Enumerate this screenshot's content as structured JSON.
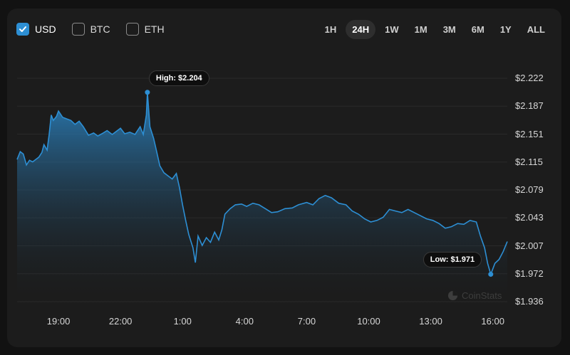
{
  "currencies": [
    {
      "label": "USD",
      "checked": true
    },
    {
      "label": "BTC",
      "checked": false
    },
    {
      "label": "ETH",
      "checked": false
    }
  ],
  "ranges": [
    "1H",
    "24H",
    "1W",
    "1M",
    "3M",
    "6M",
    "1Y",
    "ALL"
  ],
  "active_range": "24H",
  "watermark": "CoinStats",
  "colors": {
    "line": "#2d8fd4",
    "background": "#1c1c1c"
  },
  "chart_data": {
    "type": "area",
    "x_unit": "hours",
    "x_ticks": [
      {
        "label": "19:00",
        "x": 19
      },
      {
        "label": "22:00",
        "x": 22
      },
      {
        "label": "1:00",
        "x": 25
      },
      {
        "label": "4:00",
        "x": 28
      },
      {
        "label": "7:00",
        "x": 31
      },
      {
        "label": "10:00",
        "x": 34
      },
      {
        "label": "13:00",
        "x": 37
      },
      {
        "label": "16:00",
        "x": 40
      }
    ],
    "y_ticks": [
      "$2.222",
      "$2.187",
      "$2.151",
      "$2.115",
      "$2.079",
      "$2.043",
      "$2.007",
      "$1.972",
      "$1.936"
    ],
    "ylim": [
      1.936,
      2.222
    ],
    "xlim": [
      17.0,
      40.7
    ],
    "grid": true,
    "high": {
      "label": "High: $2.204",
      "x": 23.3,
      "y": 2.204
    },
    "low": {
      "label": "Low: $1.971",
      "x": 39.9,
      "y": 1.971
    },
    "series": [
      {
        "values": [
          [
            17.0,
            2.118
          ],
          [
            17.15,
            2.128
          ],
          [
            17.3,
            2.125
          ],
          [
            17.45,
            2.111
          ],
          [
            17.6,
            2.117
          ],
          [
            17.75,
            2.115
          ],
          [
            17.9,
            2.118
          ],
          [
            18.05,
            2.121
          ],
          [
            18.2,
            2.127
          ],
          [
            18.3,
            2.137
          ],
          [
            18.45,
            2.13
          ],
          [
            18.55,
            2.15
          ],
          [
            18.65,
            2.175
          ],
          [
            18.75,
            2.168
          ],
          [
            18.9,
            2.173
          ],
          [
            19.0,
            2.18
          ],
          [
            19.2,
            2.172
          ],
          [
            19.4,
            2.17
          ],
          [
            19.6,
            2.168
          ],
          [
            19.8,
            2.163
          ],
          [
            20.0,
            2.167
          ],
          [
            20.2,
            2.16
          ],
          [
            20.45,
            2.149
          ],
          [
            20.7,
            2.152
          ],
          [
            20.9,
            2.148
          ],
          [
            21.1,
            2.151
          ],
          [
            21.35,
            2.155
          ],
          [
            21.6,
            2.15
          ],
          [
            21.8,
            2.154
          ],
          [
            22.0,
            2.158
          ],
          [
            22.2,
            2.151
          ],
          [
            22.45,
            2.153
          ],
          [
            22.7,
            2.15
          ],
          [
            22.95,
            2.16
          ],
          [
            23.1,
            2.15
          ],
          [
            23.25,
            2.175
          ],
          [
            23.3,
            2.204
          ],
          [
            23.42,
            2.16
          ],
          [
            23.6,
            2.145
          ],
          [
            23.75,
            2.128
          ],
          [
            23.9,
            2.11
          ],
          [
            24.1,
            2.101
          ],
          [
            24.3,
            2.097
          ],
          [
            24.5,
            2.093
          ],
          [
            24.7,
            2.1
          ],
          [
            24.85,
            2.082
          ],
          [
            25.0,
            2.06
          ],
          [
            25.15,
            2.04
          ],
          [
            25.3,
            2.022
          ],
          [
            25.5,
            2.005
          ],
          [
            25.62,
            1.986
          ],
          [
            25.75,
            2.02
          ],
          [
            25.95,
            2.008
          ],
          [
            26.15,
            2.018
          ],
          [
            26.35,
            2.012
          ],
          [
            26.55,
            2.025
          ],
          [
            26.75,
            2.015
          ],
          [
            26.9,
            2.028
          ],
          [
            27.05,
            2.048
          ],
          [
            27.3,
            2.055
          ],
          [
            27.55,
            2.06
          ],
          [
            27.85,
            2.061
          ],
          [
            28.1,
            2.058
          ],
          [
            28.4,
            2.062
          ],
          [
            28.7,
            2.06
          ],
          [
            29.0,
            2.055
          ],
          [
            29.3,
            2.05
          ],
          [
            29.6,
            2.051
          ],
          [
            29.95,
            2.055
          ],
          [
            30.3,
            2.056
          ],
          [
            30.6,
            2.06
          ],
          [
            31.0,
            2.063
          ],
          [
            31.3,
            2.06
          ],
          [
            31.6,
            2.068
          ],
          [
            31.9,
            2.072
          ],
          [
            32.2,
            2.069
          ],
          [
            32.55,
            2.062
          ],
          [
            32.9,
            2.06
          ],
          [
            33.2,
            2.052
          ],
          [
            33.5,
            2.048
          ],
          [
            33.8,
            2.042
          ],
          [
            34.1,
            2.038
          ],
          [
            34.4,
            2.04
          ],
          [
            34.7,
            2.044
          ],
          [
            35.0,
            2.054
          ],
          [
            35.3,
            2.052
          ],
          [
            35.6,
            2.05
          ],
          [
            35.9,
            2.054
          ],
          [
            36.2,
            2.05
          ],
          [
            36.5,
            2.046
          ],
          [
            36.8,
            2.042
          ],
          [
            37.1,
            2.04
          ],
          [
            37.4,
            2.036
          ],
          [
            37.7,
            2.03
          ],
          [
            38.0,
            2.032
          ],
          [
            38.3,
            2.036
          ],
          [
            38.6,
            2.035
          ],
          [
            38.9,
            2.04
          ],
          [
            39.2,
            2.038
          ],
          [
            39.4,
            2.02
          ],
          [
            39.6,
            2.005
          ],
          [
            39.75,
            1.985
          ],
          [
            39.9,
            1.971
          ],
          [
            40.1,
            1.985
          ],
          [
            40.3,
            1.99
          ],
          [
            40.5,
            2.0
          ],
          [
            40.7,
            2.013
          ]
        ]
      }
    ]
  }
}
